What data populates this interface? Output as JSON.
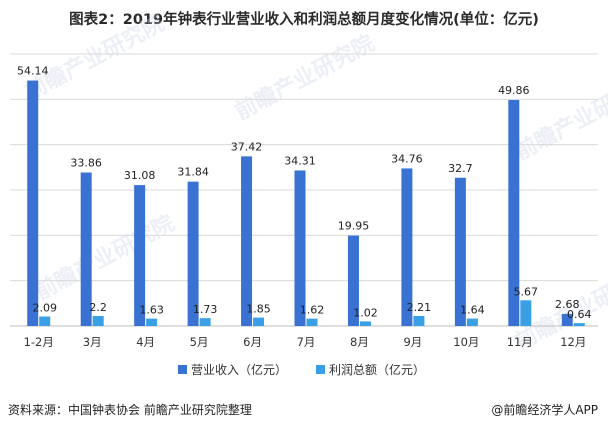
{
  "title": "图表2：2019年钟表行业营业收入和利润总额月度变化情况(单位：亿元)",
  "source": "资料来源：中国钟表协会 前瞻产业研究院整理",
  "credit": "@前瞻经济学人APP",
  "watermark": "前瞻产业研究院",
  "colors": {
    "revenue": "#3a72d4",
    "profit": "#3aa0e6",
    "grid": "#d9d9d9",
    "axis": "#bfbfbf"
  },
  "chart_data": {
    "type": "bar",
    "title": "图表2：2019年钟表行业营业收入和利润总额月度变化情况(单位：亿元)",
    "categories": [
      "1-2月",
      "3月",
      "4月",
      "5月",
      "6月",
      "7月",
      "8月",
      "9月",
      "10月",
      "11月",
      "12月"
    ],
    "series": [
      {
        "name": "营业收入（亿元）",
        "values": [
          54.14,
          33.86,
          31.08,
          31.84,
          37.42,
          34.31,
          19.95,
          34.76,
          32.7,
          49.86,
          2.68
        ]
      },
      {
        "name": "利润总额（亿元）",
        "values": [
          2.09,
          2.2,
          1.63,
          1.73,
          1.85,
          1.62,
          1.02,
          2.21,
          1.64,
          5.67,
          0.64
        ]
      }
    ],
    "data_labels": {
      "revenue": [
        "54.14",
        "33.86",
        "31.08",
        "31.84",
        "37.42",
        "34.31",
        "19.95",
        "34.76",
        "32.7",
        "49.86",
        "2.68"
      ],
      "profit": [
        "2.09",
        "2.2",
        "1.63",
        "1.73",
        "1.85",
        "1.62",
        "1.02",
        "2.21",
        "1.64",
        "5.67",
        "0.64"
      ]
    },
    "ylim": [
      0,
      60
    ],
    "grid": true,
    "legend_position": "bottom"
  }
}
